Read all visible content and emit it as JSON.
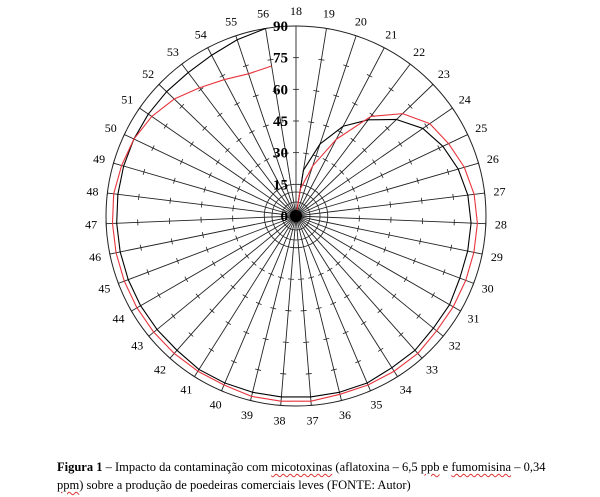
{
  "chart_data": {
    "type": "radar",
    "categories": [
      "18",
      "19",
      "20",
      "21",
      "22",
      "23",
      "24",
      "25",
      "26",
      "27",
      "28",
      "29",
      "30",
      "31",
      "32",
      "33",
      "34",
      "35",
      "36",
      "37",
      "38",
      "39",
      "40",
      "41",
      "42",
      "43",
      "44",
      "45",
      "46",
      "47",
      "48",
      "49",
      "50",
      "51",
      "52",
      "53",
      "54",
      "55",
      "56"
    ],
    "radial_ticks": [
      "0",
      "15",
      "30",
      "45",
      "60",
      "75",
      "90"
    ],
    "rlim": [
      0,
      90
    ],
    "series": [
      {
        "color": "#000000",
        "values": [
          0,
          22,
          36,
          48,
          57,
          66,
          73,
          77,
          80,
          82,
          83,
          83,
          83,
          84,
          84,
          85,
          85,
          86,
          86,
          86,
          86,
          86,
          86,
          86,
          85,
          85,
          85,
          85,
          85,
          85,
          85,
          85,
          85,
          85,
          85,
          85,
          86,
          88,
          90
        ]
      },
      {
        "color": "#e8333c",
        "values": [
          0,
          13,
          25,
          41,
          59,
          70,
          77,
          80,
          83,
          85,
          86,
          86,
          86,
          86,
          86,
          87,
          87,
          87,
          87,
          88,
          88,
          88,
          87,
          87,
          87,
          87,
          87,
          87,
          87,
          87,
          87,
          86,
          85,
          83,
          80,
          76,
          73,
          71,
          72
        ]
      }
    ]
  },
  "caption": {
    "label": "Figura 1",
    "t1": " – Impacto da contaminação com ",
    "w1": "micotoxinas",
    "t2": " (aflatoxina – 6,5 ",
    "w2": "ppb",
    "t3": " e ",
    "w3": "fumomisina",
    "t4": " – 0,34 ",
    "w4": "ppm",
    "t5": ") sobre a produção de poedeiras comerciais leves (FONTE: Autor)"
  }
}
